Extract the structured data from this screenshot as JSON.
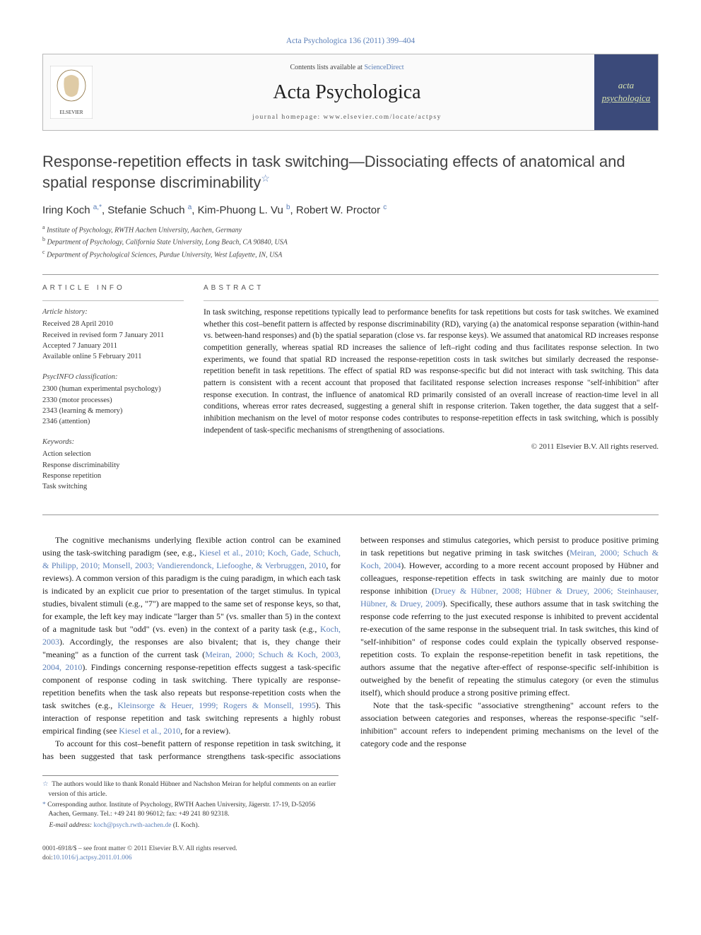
{
  "journal_ref": "Acta Psychologica 136 (2011) 399–404",
  "header": {
    "contents_prefix": "Contents lists available at ",
    "contents_link": "ScienceDirect",
    "journal_name": "Acta Psychologica",
    "homepage_prefix": "journal homepage: ",
    "homepage_url": "www.elsevier.com/locate/actpsy",
    "cover_line1": "acta",
    "cover_line2": "psychologica"
  },
  "title": "Response-repetition effects in task switching—Dissociating effects of anatomical and spatial response discriminability",
  "title_note_sym": "☆",
  "authors_html": "Iring Koch <span class='sup'>a,</span><span class='sup'>*</span>, Stefanie Schuch <span class='sup'>a</span>, Kim-Phuong L. Vu <span class='sup'>b</span>, Robert W. Proctor <span class='sup'>c</span>",
  "affiliations": {
    "a": "Institute of Psychology, RWTH Aachen University, Aachen, Germany",
    "b": "Department of Psychology, California State University, Long Beach, CA 90840, USA",
    "c": "Department of Psychological Sciences, Purdue University, West Lafayette, IN, USA"
  },
  "article_info": {
    "heading": "ARTICLE INFO",
    "history_label": "Article history:",
    "history": [
      "Received 28 April 2010",
      "Received in revised form 7 January 2011",
      "Accepted 7 January 2011",
      "Available online 5 February 2011"
    ],
    "psycinfo_label": "PsycINFO classification:",
    "psycinfo": [
      "2300 (human experimental psychology)",
      "2330 (motor processes)",
      "2343 (learning & memory)",
      "2346 (attention)"
    ],
    "keywords_label": "Keywords:",
    "keywords": [
      "Action selection",
      "Response discriminability",
      "Response repetition",
      "Task switching"
    ]
  },
  "abstract": {
    "heading": "ABSTRACT",
    "text": "In task switching, response repetitions typically lead to performance benefits for task repetitions but costs for task switches. We examined whether this cost–benefit pattern is affected by response discriminability (RD), varying (a) the anatomical response separation (within-hand vs. between-hand responses) and (b) the spatial separation (close vs. far response keys). We assumed that anatomical RD increases response competition generally, whereas spatial RD increases the salience of left–right coding and thus facilitates response selection. In two experiments, we found that spatial RD increased the response-repetition costs in task switches but similarly decreased the response-repetition benefit in task repetitions. The effect of spatial RD was response-specific but did not interact with task switching. This data pattern is consistent with a recent account that proposed that facilitated response selection increases response \"self-inhibition\" after response execution. In contrast, the influence of anatomical RD primarily consisted of an overall increase of reaction-time level in all conditions, whereas error rates decreased, suggesting a general shift in response criterion. Taken together, the data suggest that a self-inhibition mechanism on the level of motor response codes contributes to response-repetition effects in task switching, which is possibly independent of task-specific mechanisms of strengthening of associations.",
    "copyright": "© 2011 Elsevier B.V. All rights reserved."
  },
  "body": {
    "p1a": "The cognitive mechanisms underlying flexible action control can be examined using the task-switching paradigm (see, e.g., ",
    "p1c1": "Kiesel et al., 2010; Koch, Gade, Schuch, & Philipp, 2010; Monsell, 2003; Vandierendonck, Liefooghe, & Verbruggen, 2010",
    "p1b": ", for reviews). A common version of this paradigm is the cuing paradigm, in which each task is indicated by an explicit cue prior to presentation of the target stimulus. In typical studies, bivalent stimuli (e.g., \"7\") are mapped to the same set of response keys, so that, for example, the left key may indicate \"larger than 5\" (vs. smaller than 5) in the context of a magnitude task but \"odd\" (vs. even) in the context of a parity task (e.g., ",
    "p1c2": "Koch, 2003",
    "p1c": "). Accordingly, the responses are also bivalent; that is, they change their \"meaning\" as a function of the current task (",
    "p1c3": "Meiran, 2000; Schuch & Koch, 2003, 2004, 2010",
    "p1d": "). Findings concerning response-repetition effects suggest a task-specific component of response coding in task switching. There typically are response-repetition benefits when the task also repeats but response-repetition costs when the task switches (e.g., ",
    "p1c4": "Kleinsorge & Heuer, 1999; Rogers & Monsell, 1995",
    "p1e": "). This interaction of response repetition ",
    "p1f": "and task switching represents a highly robust empirical finding (see ",
    "p1c5": "Kiesel et al., 2010",
    "p1g": ", for a review).",
    "p2a": "To account for this cost–benefit pattern of response repetition in task switching, it has been suggested that task performance strengthens task-specific associations between responses and stimulus categories, which persist to produce positive priming in task repetitions but negative priming in task switches (",
    "p2c1": "Meiran, 2000; Schuch & Koch, 2004",
    "p2b": "). However, according to a more recent account proposed by Hübner and colleagues, response-repetition effects in task switching are mainly due to motor response inhibition (",
    "p2c2": "Druey & Hübner, 2008; Hübner & Druey, 2006; Steinhauser, Hübner, & Druey, 2009",
    "p2c": "). Specifically, these authors assume that in task switching the response code referring to the just executed response is inhibited to prevent accidental re-execution of the same response in the subsequent trial. In task switches, this kind of \"self-inhibition\" of response codes could explain the typically observed response-repetition costs. To explain the response-repetition benefit in task repetitions, the authors assume that the negative after-effect of response-specific self-inhibition is outweighed by the benefit of repeating the stimulus category (or even the stimulus itself), which should produce a strong positive priming effect.",
    "p3": "Note that the task-specific \"associative strengthening\" account refers to the association between categories and responses, whereas the response-specific \"self-inhibition\" account refers to independent priming mechanisms on the level of the category code and the response"
  },
  "footnotes": {
    "star": "The authors would like to thank Ronald Hübner and Nachshon Meiran for helpful comments on an earlier version of this article.",
    "corr": "Corresponding author. Institute of Psychology, RWTH Aachen University, Jägerstr. 17-19, D-52056 Aachen, Germany. Tel.: +49 241 80 96012; fax: +49 241 80 92318.",
    "email_label": "E-mail address:",
    "email": "koch@psych.rwth-aachen.de",
    "email_who": "(I. Koch)."
  },
  "footer": {
    "line1": "0001-6918/$ – see front matter © 2011 Elsevier B.V. All rights reserved.",
    "line2": "doi:10.1016/j.actpsy.2011.01.006"
  },
  "colors": {
    "link": "#5b7fb8",
    "rule": "#999999",
    "cover_bg": "#3b4a7a",
    "cover_text": "#d8e3b0"
  }
}
